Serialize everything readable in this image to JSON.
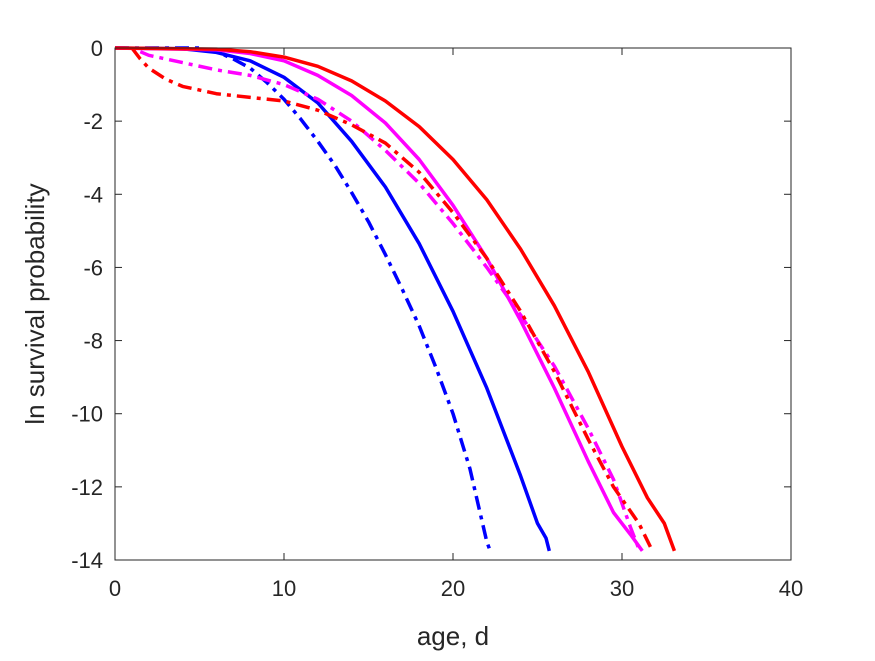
{
  "chart_data": {
    "type": "line",
    "title": "",
    "xlabel": "age, d",
    "ylabel": "ln survival probability",
    "xlim": [
      0,
      40
    ],
    "ylim": [
      -14,
      0
    ],
    "xticks": [
      "0",
      "10",
      "20",
      "30",
      "40"
    ],
    "yticks": [
      "0",
      "-2",
      "-4",
      "-6",
      "-8",
      "-10",
      "-12",
      "-14"
    ],
    "grid": false,
    "legend": "none",
    "series": [
      {
        "color": "#0000ff",
        "style": "dashdot",
        "x": [
          0,
          3,
          5,
          6,
          7,
          8,
          9,
          10,
          11,
          12,
          13,
          14,
          15,
          16,
          17,
          18,
          19,
          20,
          21,
          21.5,
          22,
          22.2
        ],
        "y": [
          0,
          0,
          0,
          -0.1,
          -0.3,
          -0.55,
          -0.95,
          -1.4,
          -1.95,
          -2.55,
          -3.2,
          -3.95,
          -4.75,
          -5.65,
          -6.6,
          -7.6,
          -8.75,
          -10.0,
          -11.5,
          -12.5,
          -13.5,
          -13.75
        ]
      },
      {
        "color": "#0000ff",
        "style": "solid",
        "x": [
          0,
          4,
          6,
          8,
          10,
          12,
          14,
          16,
          18,
          20,
          22,
          24,
          25,
          25.5,
          25.7
        ],
        "y": [
          0,
          -0.02,
          -0.12,
          -0.35,
          -0.8,
          -1.5,
          -2.55,
          -3.8,
          -5.35,
          -7.2,
          -9.3,
          -11.7,
          -13.0,
          -13.4,
          -13.75
        ]
      },
      {
        "color": "#ff00ff",
        "style": "dashdot",
        "x": [
          1.5,
          2,
          4,
          6,
          8,
          10,
          12,
          14,
          16,
          18,
          20,
          22,
          24,
          26,
          28,
          29.5,
          30.5,
          31
        ],
        "y": [
          -0.1,
          -0.2,
          -0.4,
          -0.6,
          -0.75,
          -1.0,
          -1.4,
          -2.0,
          -2.8,
          -3.7,
          -4.8,
          -6.0,
          -7.3,
          -8.7,
          -10.4,
          -11.8,
          -13.1,
          -13.7
        ]
      },
      {
        "color": "#ff00ff",
        "style": "solid",
        "x": [
          0,
          6,
          8,
          10,
          12,
          14,
          16,
          18,
          20,
          22,
          24,
          26,
          28,
          29.5,
          30.5,
          31.2
        ],
        "y": [
          0,
          -0.05,
          -0.15,
          -0.35,
          -0.75,
          -1.3,
          -2.05,
          -3.05,
          -4.3,
          -5.75,
          -7.45,
          -9.3,
          -11.3,
          -12.7,
          -13.3,
          -13.75
        ]
      },
      {
        "color": "#ff0000",
        "style": "dashdot",
        "x": [
          1,
          1.5,
          2,
          3,
          4,
          6,
          8,
          10,
          12,
          14,
          16,
          18,
          20,
          22,
          24,
          26,
          28,
          29.5,
          31,
          31.8
        ],
        "y": [
          0,
          -0.3,
          -0.55,
          -0.85,
          -1.05,
          -1.25,
          -1.35,
          -1.45,
          -1.7,
          -2.1,
          -2.6,
          -3.4,
          -4.5,
          -5.75,
          -7.2,
          -8.85,
          -10.7,
          -12.0,
          -13.0,
          -13.75
        ]
      },
      {
        "color": "#ff0000",
        "style": "solid",
        "x": [
          0,
          6,
          8,
          10,
          12,
          14,
          16,
          18,
          20,
          22,
          24,
          26,
          28,
          30,
          31.5,
          32.5,
          33.1
        ],
        "y": [
          0,
          -0.03,
          -0.1,
          -0.25,
          -0.5,
          -0.9,
          -1.45,
          -2.15,
          -3.05,
          -4.15,
          -5.5,
          -7.05,
          -8.85,
          -10.9,
          -12.3,
          -13.0,
          -13.75
        ]
      }
    ]
  }
}
